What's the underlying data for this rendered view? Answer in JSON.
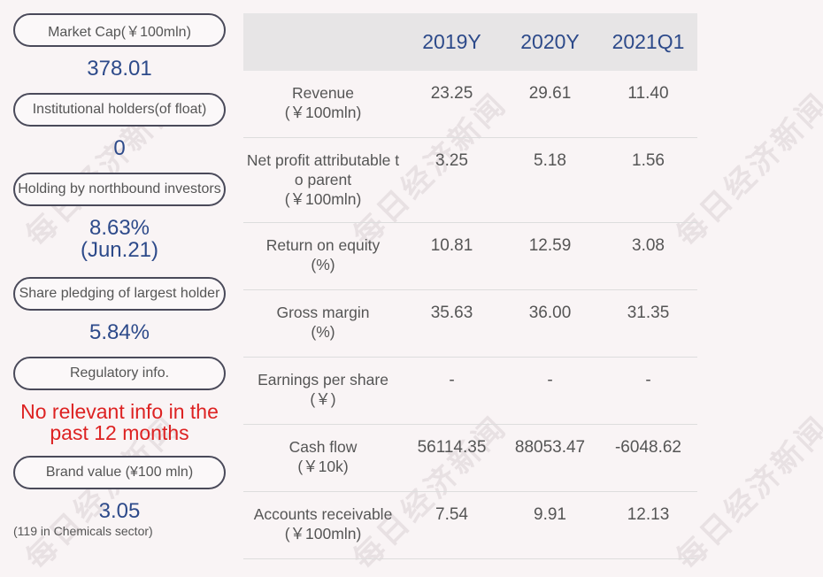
{
  "watermark_text": "每日经济新闻",
  "left_panel": [
    {
      "label": "Market Cap(￥100mln)",
      "value": "378.01"
    },
    {
      "label": "Institutional holders(of float)",
      "value": "0"
    },
    {
      "label": "Holding by northbound investors",
      "value_line1": "8.63%",
      "value_line2": "(Jun.21)"
    },
    {
      "label": "Share pledging of largest holder",
      "value": "5.84%"
    },
    {
      "label": "Regulatory info.",
      "value_line1": "No relevant info in the",
      "value_line2": "past 12 months"
    },
    {
      "label": "Brand value (¥100 mln)",
      "value": "3.05",
      "note": "(119 in Chemicals sector)"
    }
  ],
  "table": {
    "columns": [
      "2019Y",
      "2020Y",
      "2021Q1"
    ],
    "rows": [
      {
        "label_line1": "Revenue",
        "label_line2": "(￥100mln)",
        "values": [
          "23.25",
          "29.61",
          "11.40"
        ]
      },
      {
        "label_line1": "Net profit attributable t",
        "label_line2": "o parent",
        "label_line3": "(￥100mln)",
        "values": [
          "3.25",
          "5.18",
          "1.56"
        ]
      },
      {
        "label_line1": "Return on equity",
        "label_line2": "(%)",
        "values": [
          "10.81",
          "12.59",
          "3.08"
        ]
      },
      {
        "label_line1": "Gross margin",
        "label_line2": "(%)",
        "values": [
          "35.63",
          "36.00",
          "31.35"
        ]
      },
      {
        "label_line1": "Earnings per share",
        "label_line2": "(￥)",
        "values": [
          "-",
          "-",
          "-"
        ]
      },
      {
        "label_line1": "Cash flow",
        "label_line2": "(￥10k)",
        "values": [
          "56114.35",
          "88053.47",
          "-6048.62"
        ]
      },
      {
        "label_line1": "Accounts receivable",
        "label_line2": "(￥100mln)",
        "values": [
          "7.54",
          "9.91",
          "12.13"
        ]
      }
    ]
  },
  "colors": {
    "value_blue": "#2d4a8a",
    "alert_red": "#dd2222",
    "header_bg": "#e7e5e6"
  }
}
